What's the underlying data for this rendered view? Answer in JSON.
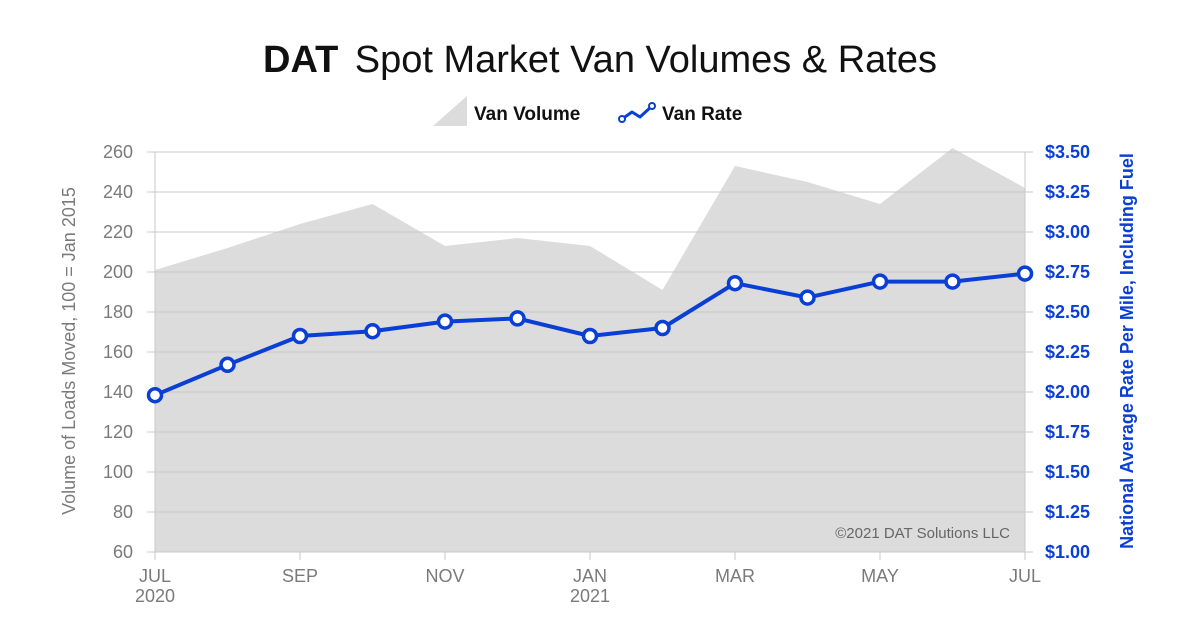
{
  "colors": {
    "volume_fill": "#dcdcdc",
    "rate_line": "#0a3fd6",
    "grid": "#c8c8c8",
    "left_axis_text": "#7a7a7a",
    "right_axis_text": "#0a3fd6"
  },
  "header": {
    "brand": "DAT",
    "title": "Spot Market Van Volumes & Rates"
  },
  "legend": {
    "position": "top-center",
    "volume_label": "Van Volume",
    "rate_label": "Van Rate",
    "volume_icon": "area-swatch-icon",
    "rate_icon": "line-marker-icon"
  },
  "copyright": "©2021 DAT Solutions LLC",
  "chart_data": {
    "type": "area",
    "title": "DAT Spot Market Van Volumes & Rates",
    "grid": true,
    "categories": [
      "JUL 2020",
      "AUG 2020",
      "SEP 2020",
      "OCT 2020",
      "NOV 2020",
      "DEC 2020",
      "JAN 2021",
      "FEB 2021",
      "MAR 2021",
      "APR 2021",
      "MAY 2021",
      "JUN 2021",
      "JUL 2021"
    ],
    "x_ticks": [
      {
        "line1": "JUL",
        "line2": "2020",
        "index": 0
      },
      {
        "line1": "SEP",
        "line2": "",
        "index": 2
      },
      {
        "line1": "NOV",
        "line2": "",
        "index": 4
      },
      {
        "line1": "JAN",
        "line2": "2021",
        "index": 6
      },
      {
        "line1": "MAR",
        "line2": "",
        "index": 8
      },
      {
        "line1": "MAY",
        "line2": "",
        "index": 10
      },
      {
        "line1": "JUL",
        "line2": "",
        "index": 12
      }
    ],
    "ylabel": "Volume of Loads Moved, 100 = Jan 2015",
    "ylabel_right": "National Average Rate Per Mile, Including Fuel",
    "ylim": [
      60,
      260
    ],
    "yticks": [
      60,
      80,
      100,
      120,
      140,
      160,
      180,
      200,
      220,
      240,
      260
    ],
    "ylim_right": [
      1.0,
      3.5
    ],
    "yticks_right": [
      "$1.00",
      "$1.25",
      "$1.50",
      "$1.75",
      "$2.00",
      "$2.25",
      "$2.50",
      "$2.75",
      "$3.00",
      "$3.25",
      "$3.50"
    ],
    "series": [
      {
        "name": "Van Volume",
        "type": "area",
        "axis": "left",
        "values": [
          201,
          212,
          224,
          234,
          213,
          217,
          213,
          191,
          253,
          245,
          234,
          262,
          242
        ]
      },
      {
        "name": "Van Rate",
        "type": "line",
        "axis": "right",
        "values": [
          1.98,
          2.17,
          2.35,
          2.38,
          2.44,
          2.46,
          2.35,
          2.4,
          2.68,
          2.59,
          2.69,
          2.69,
          2.74
        ]
      }
    ]
  }
}
